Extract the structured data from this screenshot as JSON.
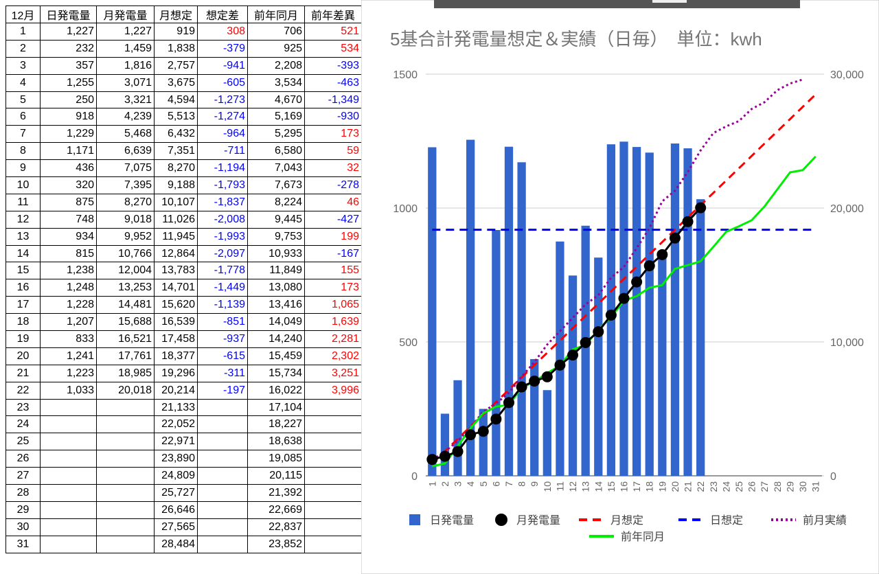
{
  "table": {
    "header": [
      "12月",
      "日発電量",
      "月発電量",
      "月想定",
      "想定差",
      "前年同月",
      "前年差異"
    ],
    "rows": [
      [
        "1",
        "1,227",
        "1,227",
        "919",
        "308",
        "706",
        "521"
      ],
      [
        "2",
        "232",
        "1,459",
        "1,838",
        "-379",
        "925",
        "534"
      ],
      [
        "3",
        "357",
        "1,816",
        "2,757",
        "-941",
        "2,208",
        "-393"
      ],
      [
        "4",
        "1,255",
        "3,071",
        "3,675",
        "-605",
        "3,534",
        "-463"
      ],
      [
        "5",
        "250",
        "3,321",
        "4,594",
        "-1,273",
        "4,670",
        "-1,349"
      ],
      [
        "6",
        "918",
        "4,239",
        "5,513",
        "-1,274",
        "5,169",
        "-930"
      ],
      [
        "7",
        "1,229",
        "5,468",
        "6,432",
        "-964",
        "5,295",
        "173"
      ],
      [
        "8",
        "1,171",
        "6,639",
        "7,351",
        "-711",
        "6,580",
        "59"
      ],
      [
        "9",
        "436",
        "7,075",
        "8,270",
        "-1,194",
        "7,043",
        "32"
      ],
      [
        "10",
        "320",
        "7,395",
        "9,188",
        "-1,793",
        "7,673",
        "-278"
      ],
      [
        "11",
        "875",
        "8,270",
        "10,107",
        "-1,837",
        "8,224",
        "46"
      ],
      [
        "12",
        "748",
        "9,018",
        "11,026",
        "-2,008",
        "9,445",
        "-427"
      ],
      [
        "13",
        "934",
        "9,952",
        "11,945",
        "-1,993",
        "9,753",
        "199"
      ],
      [
        "14",
        "815",
        "10,766",
        "12,864",
        "-2,097",
        "10,933",
        "-167"
      ],
      [
        "15",
        "1,238",
        "12,004",
        "13,783",
        "-1,778",
        "11,849",
        "155"
      ],
      [
        "16",
        "1,248",
        "13,253",
        "14,701",
        "-1,449",
        "13,080",
        "173"
      ],
      [
        "17",
        "1,228",
        "14,481",
        "15,620",
        "-1,139",
        "13,416",
        "1,065"
      ],
      [
        "18",
        "1,207",
        "15,688",
        "16,539",
        "-851",
        "14,049",
        "1,639"
      ],
      [
        "19",
        "833",
        "16,521",
        "17,458",
        "-937",
        "14,240",
        "2,281"
      ],
      [
        "20",
        "1,241",
        "17,761",
        "18,377",
        "-615",
        "15,459",
        "2,302"
      ],
      [
        "21",
        "1,223",
        "18,985",
        "19,296",
        "-311",
        "15,734",
        "3,251"
      ],
      [
        "22",
        "1,033",
        "20,018",
        "20,214",
        "-197",
        "16,022",
        "3,996"
      ],
      [
        "23",
        null,
        null,
        "21,133",
        null,
        "17,104",
        null
      ],
      [
        "24",
        null,
        null,
        "22,052",
        null,
        "18,227",
        null
      ],
      [
        "25",
        null,
        null,
        "22,971",
        null,
        "18,638",
        null
      ],
      [
        "26",
        null,
        null,
        "23,890",
        null,
        "19,085",
        null
      ],
      [
        "27",
        null,
        null,
        "24,809",
        null,
        "20,115",
        null
      ],
      [
        "28",
        null,
        null,
        "25,727",
        null,
        "21,392",
        null
      ],
      [
        "29",
        null,
        null,
        "26,646",
        null,
        "22,669",
        null
      ],
      [
        "30",
        null,
        null,
        "27,565",
        null,
        "22,837",
        null
      ],
      [
        "31",
        null,
        null,
        "28,484",
        null,
        "23,852",
        null
      ]
    ]
  },
  "chart_data": {
    "type": "bar",
    "title": "5基合計発電量想定＆実績（日毎）　単位：kwh",
    "categories": [
      "1",
      "2",
      "3",
      "4",
      "5",
      "6",
      "7",
      "8",
      "9",
      "10",
      "11",
      "12",
      "13",
      "14",
      "15",
      "16",
      "17",
      "18",
      "19",
      "20",
      "21",
      "22",
      "23",
      "24",
      "25",
      "26",
      "27",
      "28",
      "29",
      "30",
      "31"
    ],
    "ylim": [
      0,
      1500
    ],
    "yticks": [
      0,
      500,
      1000,
      1500
    ],
    "y2lim": [
      0,
      30000
    ],
    "y2ticks": [
      0,
      {
        "value": 10000,
        "label": "10,000"
      },
      {
        "value": 20000,
        "label": "20,000"
      },
      {
        "value": 30000,
        "label": "30,000"
      }
    ],
    "grid": true,
    "legend": "bottom",
    "series": [
      {
        "name": "日発電量",
        "type": "bar",
        "color": "#3366cc",
        "values": [
          1227,
          232,
          357,
          1255,
          250,
          918,
          1229,
          1171,
          436,
          320,
          875,
          748,
          934,
          815,
          1238,
          1248,
          1228,
          1207,
          833,
          1241,
          1223,
          1033,
          null,
          null,
          null,
          null,
          null,
          null,
          null,
          null,
          null
        ]
      },
      {
        "name": "月発電量",
        "type": "line",
        "style": "solid",
        "marker": true,
        "color": "#000000",
        "axis": "y2",
        "values": [
          1227,
          1459,
          1816,
          3071,
          3321,
          4239,
          5468,
          6639,
          7075,
          7395,
          8270,
          9018,
          9952,
          10766,
          12004,
          13253,
          14481,
          15688,
          16521,
          17761,
          18985,
          20018,
          null,
          null,
          null,
          null,
          null,
          null,
          null,
          null,
          null
        ]
      },
      {
        "name": "月想定",
        "type": "line",
        "style": "dashed",
        "color": "#ff0000",
        "axis": "y2",
        "values": [
          919,
          1838,
          2757,
          3675,
          4594,
          5513,
          6432,
          7351,
          8270,
          9188,
          10107,
          11026,
          11945,
          12864,
          13783,
          14701,
          15620,
          16539,
          17458,
          18377,
          19296,
          20214,
          21133,
          22052,
          22971,
          23890,
          24809,
          25727,
          26646,
          27565,
          28484
        ]
      },
      {
        "name": "日想定",
        "type": "line",
        "style": "dashed",
        "color": "#0000ff",
        "values": [
          919,
          919,
          919,
          919,
          919,
          919,
          919,
          919,
          919,
          919,
          919,
          919,
          919,
          919,
          919,
          919,
          919,
          919,
          919,
          919,
          919,
          919,
          919,
          919,
          919,
          919,
          919,
          919,
          919,
          919,
          919
        ]
      },
      {
        "name": "前月実績",
        "type": "line",
        "style": "dotted",
        "color": "#990099",
        "axis": "y2",
        "values": [
          1200,
          1800,
          2600,
          3600,
          4800,
          5400,
          6200,
          7400,
          8500,
          9800,
          10800,
          11800,
          12800,
          13500,
          14800,
          15600,
          17000,
          18500,
          20500,
          21300,
          22700,
          24300,
          25600,
          26100,
          26500,
          27400,
          27900,
          28800,
          29300,
          29600,
          null
        ]
      },
      {
        "name": "前年同月",
        "type": "line",
        "style": "solid",
        "color": "#00ee00",
        "axis": "y2",
        "values": [
          706,
          925,
          2208,
          3534,
          4670,
          5169,
          5295,
          6580,
          7043,
          7673,
          8224,
          9445,
          9753,
          10933,
          11849,
          13080,
          13416,
          14049,
          14240,
          15459,
          15734,
          16022,
          17104,
          18227,
          18638,
          19085,
          20115,
          21392,
          22669,
          22837,
          23852
        ]
      }
    ]
  }
}
